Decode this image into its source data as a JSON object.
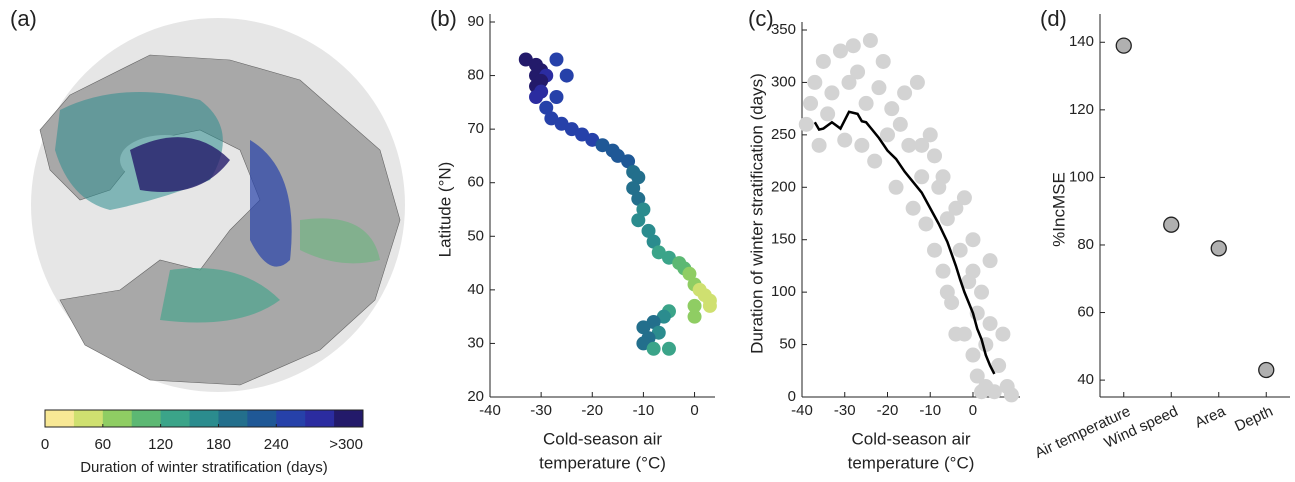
{
  "chart_data": [
    {
      "type": "map",
      "label": "(a)",
      "colorbar": {
        "label": "Duration of winter stratification (days)",
        "colors": [
          "#f8e895",
          "#cfe070",
          "#8fcd63",
          "#5cb873",
          "#3ba489",
          "#2b8c8e",
          "#236f8c",
          "#1f5896",
          "#2641a9",
          "#2b2ca0",
          "#231a6a"
        ],
        "lim": [
          0,
          330
        ],
        "ticks": [
          0,
          60,
          120,
          180,
          240,
          {
            "value": 330,
            "label": ">300"
          }
        ]
      }
    },
    {
      "type": "scatter",
      "label": "(b)",
      "xlabel": [
        "Cold-season air",
        "temperature (°C)"
      ],
      "ylabel": "Latitude (°N)",
      "xlim": [
        -40,
        4
      ],
      "xticks": [
        -40,
        -30,
        -20,
        -10,
        0
      ],
      "ylim": [
        20,
        90
      ],
      "yticks": [
        20,
        30,
        40,
        50,
        60,
        70,
        80,
        90
      ],
      "x": [
        -33,
        -31,
        -30,
        -31,
        -29,
        -30,
        -31,
        -30,
        -27,
        -25,
        -27,
        -31,
        -29,
        -28,
        -26,
        -24,
        -22,
        -20,
        -18,
        -16,
        -15,
        -13,
        -12,
        -11,
        -12,
        -11,
        -10,
        -11,
        -9,
        -8,
        -7,
        -5,
        -3,
        -2,
        -1,
        0,
        1,
        2,
        3,
        3,
        0,
        0,
        -5,
        -6,
        -8,
        -10,
        -7,
        -9,
        -10,
        -8,
        -5
      ],
      "y": [
        83,
        82,
        81,
        80,
        80,
        79,
        78,
        77,
        83,
        80,
        76,
        76,
        74,
        72,
        71,
        70,
        69,
        68,
        67,
        66,
        65,
        64,
        62,
        61,
        59,
        57,
        55,
        53,
        51,
        49,
        47,
        46,
        45,
        44,
        43,
        41,
        40,
        39,
        38,
        37,
        37,
        35,
        36,
        35,
        34,
        33,
        32,
        31,
        30,
        29,
        29
      ],
      "colors": [
        "#231a6a",
        "#231a6a",
        "#231a6a",
        "#231a6a",
        "#2b2ca0",
        "#231a6a",
        "#231a6a",
        "#2b2ca0",
        "#2641a9",
        "#2641a9",
        "#2641a9",
        "#2b2ca0",
        "#2641a9",
        "#2641a9",
        "#2641a9",
        "#2641a9",
        "#2641a9",
        "#2641a9",
        "#1f5896",
        "#1f5896",
        "#1f5896",
        "#1f5896",
        "#236f8c",
        "#236f8c",
        "#236f8c",
        "#236f8c",
        "#2b8c8e",
        "#2b8c8e",
        "#2b8c8e",
        "#2b8c8e",
        "#3ba489",
        "#3ba489",
        "#5cb873",
        "#5cb873",
        "#8fcd63",
        "#8fcd63",
        "#cfe070",
        "#cfe070",
        "#cfe070",
        "#cfe070",
        "#8fcd63",
        "#8fcd63",
        "#3ba489",
        "#2b8c8e",
        "#236f8c",
        "#236f8c",
        "#2b8c8e",
        "#236f8c",
        "#236f8c",
        "#3ba489",
        "#3ba489"
      ]
    },
    {
      "type": "scatter",
      "label": "(c)",
      "xlabel": [
        "Cold-season air",
        "temperature (°C)"
      ],
      "ylabel": "Duration of winter stratification (days)",
      "xlim": [
        -40,
        11
      ],
      "xticks": [
        -40,
        -30,
        -20,
        -10,
        0
      ],
      "ylim": [
        0,
        350
      ],
      "yticks": [
        0,
        50,
        100,
        150,
        200,
        250,
        300,
        350
      ],
      "series": [
        {
          "type": "scatter",
          "color": "#d3d3d3",
          "x": [
            -38,
            -37,
            -36,
            -35,
            -33,
            -31,
            -30,
            -28,
            -27,
            -25,
            -24,
            -23,
            -22,
            -20,
            -19,
            -18,
            -17,
            -15,
            -14,
            -13,
            -12,
            -11,
            -10,
            -9,
            -8,
            -7,
            -6,
            -5,
            -4,
            -3,
            -2,
            -1,
            0,
            0,
            1,
            1,
            2,
            2,
            3,
            3,
            4,
            5,
            6,
            7,
            8,
            9,
            -9,
            -16,
            -21,
            -26,
            -39,
            -4,
            -6,
            -2,
            -34,
            -29,
            -12,
            -7,
            4,
            0
          ],
          "y": [
            280,
            300,
            240,
            320,
            290,
            330,
            245,
            335,
            310,
            280,
            340,
            225,
            295,
            250,
            275,
            200,
            260,
            240,
            180,
            300,
            210,
            165,
            250,
            140,
            200,
            120,
            170,
            90,
            180,
            140,
            60,
            110,
            40,
            150,
            20,
            80,
            5,
            100,
            50,
            10,
            70,
            5,
            30,
            60,
            10,
            2,
            230,
            290,
            320,
            240,
            260,
            60,
            100,
            190,
            270,
            300,
            240,
            210,
            130,
            120
          ]
        },
        {
          "type": "line",
          "color": "#000000",
          "x": [
            -37,
            -36,
            -35,
            -33,
            -31,
            -29,
            -27,
            -26,
            -25,
            -24,
            -22,
            -20,
            -18,
            -16,
            -14,
            -12,
            -10,
            -8,
            -6,
            -4,
            -3,
            -2,
            -1,
            0,
            1,
            2,
            3,
            4,
            5
          ],
          "y": [
            262,
            255,
            256,
            262,
            256,
            272,
            270,
            263,
            262,
            257,
            247,
            235,
            227,
            215,
            205,
            195,
            180,
            165,
            148,
            125,
            112,
            100,
            90,
            80,
            65,
            55,
            40,
            30,
            22
          ]
        }
      ]
    },
    {
      "type": "dot",
      "label": "(d)",
      "ylabel": "%IncMSE",
      "categories": [
        "Air temperature",
        "Wind speed",
        "Area",
        "Depth"
      ],
      "values": [
        139,
        86,
        79,
        43
      ],
      "color": "#b0b0b0",
      "ylim": [
        35,
        146
      ],
      "yticks": [
        40,
        60,
        80,
        100,
        120,
        140
      ]
    }
  ]
}
